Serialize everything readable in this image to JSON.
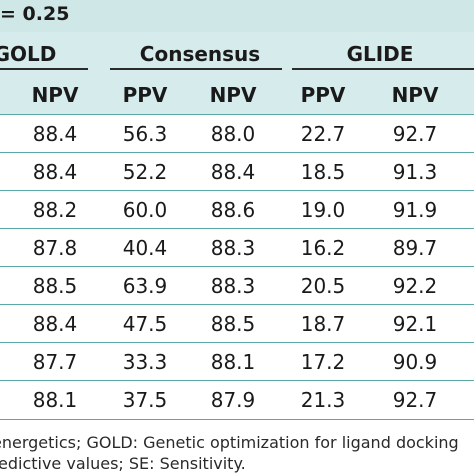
{
  "threshold_title": "= 0.25",
  "groups": [
    "GOLD",
    "Consensus",
    "GLIDE"
  ],
  "columns": [
    "NPV",
    "PPV",
    "NPV",
    "PPV",
    "NPV"
  ],
  "rows": [
    [
      "88.4",
      "56.3",
      "88.0",
      "22.7",
      "92.7"
    ],
    [
      "88.4",
      "52.2",
      "88.4",
      "18.5",
      "91.3"
    ],
    [
      "88.2",
      "60.0",
      "88.6",
      "19.0",
      "91.9"
    ],
    [
      "87.8",
      "40.4",
      "88.3",
      "16.2",
      "89.7"
    ],
    [
      "88.5",
      "63.9",
      "88.3",
      "20.5",
      "92.2"
    ],
    [
      "88.4",
      "47.5",
      "88.5",
      "18.7",
      "92.1"
    ],
    [
      "87.7",
      "33.3",
      "88.1",
      "17.2",
      "90.9"
    ],
    [
      "88.1",
      "37.5",
      "87.9",
      "21.3",
      "92.7"
    ]
  ],
  "footnotes": [
    "energetics; GOLD: Genetic optimization for ligand docking",
    "edictive values; SE: Sensitivity."
  ],
  "colors": {
    "header_bg": "#d6ebeb",
    "rule": "#5aa8a8",
    "text": "#1a1a1a"
  }
}
